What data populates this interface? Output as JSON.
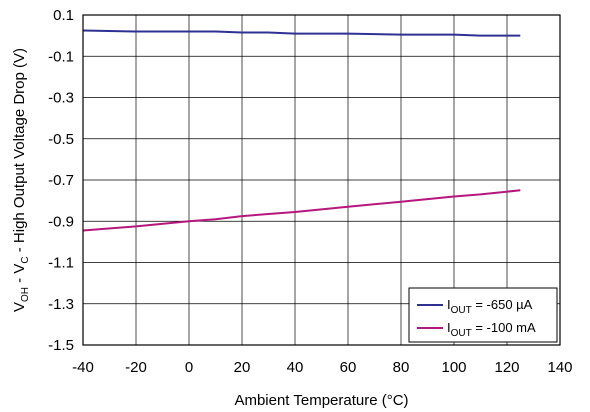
{
  "chart_data": {
    "type": "line",
    "title": "",
    "xlabel": "Ambient Temperature (°C)",
    "ylabel": {
      "v1": "V",
      "v1_sub": "OH",
      "mid": " - V",
      "v2_sub": "C",
      "rest": " - High Output Voltage Drop (V)"
    },
    "xlim": [
      -40,
      140
    ],
    "ylim": [
      -1.5,
      0.1
    ],
    "xticks": [
      -40,
      -20,
      0,
      20,
      40,
      60,
      80,
      100,
      120,
      140
    ],
    "xtick_labels": [
      "-40",
      "-20",
      "0",
      "20",
      "40",
      "60",
      "80",
      "100",
      "120",
      "140"
    ],
    "yticks": [
      0.1,
      -0.1,
      -0.3,
      -0.5,
      -0.7,
      -0.9,
      -1.1,
      -1.3,
      -1.5
    ],
    "ytick_labels": [
      "0.1",
      "-0.1",
      "-0.3",
      "-0.5",
      "-0.7",
      "-0.9",
      "-1.1",
      "-1.3",
      "-1.5"
    ],
    "grid": true,
    "legend_position": "bottom-right",
    "series": [
      {
        "label_main": "I",
        "label_sub": "OUT",
        "label_rest": " = -650 µA",
        "color": "#2e3192",
        "x": [
          -40,
          -20,
          0,
          10,
          20,
          30,
          40,
          60,
          80,
          100,
          110,
          125
        ],
        "y": [
          0.025,
          0.02,
          0.02,
          0.02,
          0.015,
          0.015,
          0.01,
          0.01,
          0.005,
          0.005,
          0.0,
          0.0
        ]
      },
      {
        "label_main": "I",
        "label_sub": "OUT",
        "label_rest": " = -100 mA",
        "color": "#b5177d",
        "x": [
          -40,
          -20,
          0,
          10,
          20,
          30,
          40,
          60,
          80,
          100,
          110,
          125
        ],
        "y": [
          -0.945,
          -0.925,
          -0.9,
          -0.89,
          -0.875,
          -0.865,
          -0.855,
          -0.83,
          -0.805,
          -0.78,
          -0.77,
          -0.75
        ]
      }
    ]
  }
}
